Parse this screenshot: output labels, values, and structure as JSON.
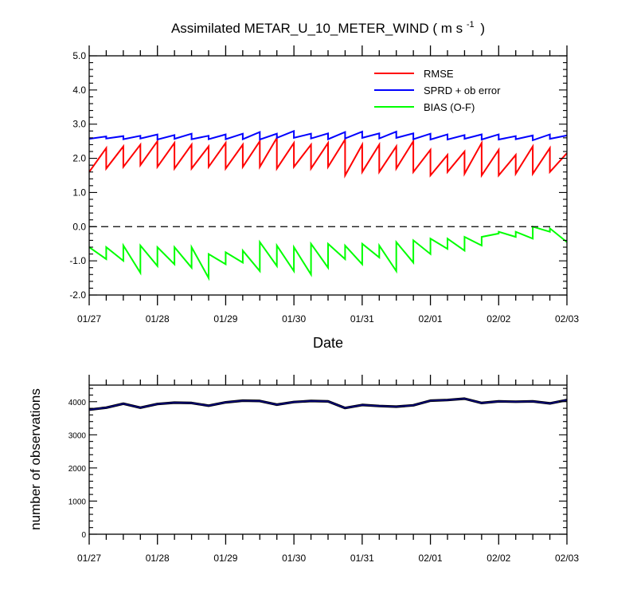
{
  "chart_data": [
    {
      "type": "line",
      "title": "Assimilated METAR_U_10_METER_WIND ( m s",
      "title_unit_exponent": "-1",
      "title_close": ")",
      "xlabel": "Date",
      "ylabel": "",
      "x_ticklabels": [
        "01/27",
        "01/28",
        "01/29",
        "01/30",
        "01/31",
        "02/01",
        "02/02",
        "02/03"
      ],
      "y_ticklabels": [
        "5.0",
        "4.0",
        "3.0",
        "2.0",
        "1.0",
        "0.0",
        "-1.0",
        "-2.0"
      ],
      "xlim": [
        "01/27",
        "02/03"
      ],
      "ylim": [
        -2,
        5
      ],
      "zero_line": "dashed",
      "legend_position": "top-right",
      "series": [
        {
          "name": "RMSE",
          "color": "#ff0000",
          "x_days": [
            0.0,
            0.25,
            0.25,
            0.5,
            0.5,
            0.75,
            0.75,
            1.0,
            1.0,
            1.25,
            1.25,
            1.5,
            1.5,
            1.75,
            1.75,
            2.0,
            2.0,
            2.25,
            2.25,
            2.5,
            2.5,
            2.75,
            2.75,
            3.0,
            3.0,
            3.25,
            3.25,
            3.5,
            3.5,
            3.75,
            3.75,
            4.0,
            4.0,
            4.25,
            4.25,
            4.5,
            4.5,
            4.75,
            4.75,
            5.0,
            5.0,
            5.25,
            5.25,
            5.5,
            5.5,
            5.75,
            5.75,
            6.0,
            6.0,
            6.25,
            6.25,
            6.5,
            6.5,
            6.75,
            6.75,
            7.0
          ],
          "values": [
            1.6,
            2.3,
            1.7,
            2.35,
            1.75,
            2.4,
            1.8,
            2.5,
            1.75,
            2.45,
            1.7,
            2.4,
            1.7,
            2.35,
            1.75,
            2.45,
            1.7,
            2.4,
            1.75,
            2.5,
            1.75,
            2.6,
            1.7,
            2.45,
            1.75,
            2.4,
            1.7,
            2.45,
            1.75,
            2.55,
            1.5,
            2.4,
            1.6,
            2.4,
            1.6,
            2.35,
            1.7,
            2.5,
            1.6,
            2.25,
            1.5,
            2.1,
            1.6,
            2.2,
            1.55,
            2.45,
            1.5,
            2.25,
            1.5,
            2.1,
            1.55,
            2.35,
            1.55,
            2.3,
            1.6,
            2.15
          ]
        },
        {
          "name": "SPRD + ob error",
          "color": "#0000ff",
          "x_days": [
            0.0,
            0.25,
            0.25,
            0.5,
            0.5,
            0.75,
            0.75,
            1.0,
            1.0,
            1.25,
            1.25,
            1.5,
            1.5,
            1.75,
            1.75,
            2.0,
            2.0,
            2.25,
            2.25,
            2.5,
            2.5,
            2.75,
            2.75,
            3.0,
            3.0,
            3.25,
            3.25,
            3.5,
            3.5,
            3.75,
            3.75,
            4.0,
            4.0,
            4.25,
            4.25,
            4.5,
            4.5,
            4.75,
            4.75,
            5.0,
            5.0,
            5.25,
            5.25,
            5.5,
            5.5,
            5.75,
            5.75,
            6.0,
            6.0,
            6.25,
            6.25,
            6.5,
            6.5,
            6.75,
            6.75,
            7.0
          ],
          "values": [
            2.57,
            2.64,
            2.58,
            2.65,
            2.56,
            2.66,
            2.58,
            2.7,
            2.55,
            2.68,
            2.57,
            2.72,
            2.56,
            2.66,
            2.56,
            2.7,
            2.56,
            2.72,
            2.56,
            2.77,
            2.55,
            2.72,
            2.6,
            2.8,
            2.6,
            2.72,
            2.58,
            2.73,
            2.56,
            2.77,
            2.58,
            2.78,
            2.6,
            2.73,
            2.58,
            2.78,
            2.6,
            2.73,
            2.56,
            2.72,
            2.55,
            2.7,
            2.55,
            2.68,
            2.57,
            2.7,
            2.55,
            2.7,
            2.55,
            2.65,
            2.56,
            2.67,
            2.53,
            2.7,
            2.57,
            2.67
          ]
        },
        {
          "name": "BIAS (O-F)",
          "color": "#00ff00",
          "x_days": [
            0.0,
            0.25,
            0.25,
            0.5,
            0.5,
            0.75,
            0.75,
            1.0,
            1.0,
            1.25,
            1.25,
            1.5,
            1.5,
            1.75,
            1.75,
            2.0,
            2.0,
            2.25,
            2.25,
            2.5,
            2.5,
            2.75,
            2.75,
            3.0,
            3.0,
            3.25,
            3.25,
            3.5,
            3.5,
            3.75,
            3.75,
            4.0,
            4.0,
            4.25,
            4.25,
            4.5,
            4.5,
            4.75,
            4.75,
            5.0,
            5.0,
            5.25,
            5.25,
            5.5,
            5.5,
            5.75,
            5.75,
            6.0,
            6.0,
            6.25,
            6.25,
            6.5,
            6.5,
            6.75,
            6.75,
            7.0
          ],
          "values": [
            -0.6,
            -0.95,
            -0.6,
            -1.0,
            -0.55,
            -1.35,
            -0.55,
            -1.15,
            -0.6,
            -1.1,
            -0.6,
            -1.2,
            -0.6,
            -1.5,
            -0.8,
            -1.1,
            -0.75,
            -1.05,
            -0.7,
            -1.3,
            -0.45,
            -1.15,
            -0.55,
            -1.3,
            -0.6,
            -1.4,
            -0.5,
            -1.2,
            -0.5,
            -0.95,
            -0.55,
            -1.1,
            -0.5,
            -0.9,
            -0.55,
            -1.3,
            -0.45,
            -1.05,
            -0.4,
            -0.8,
            -0.35,
            -0.65,
            -0.35,
            -0.7,
            -0.3,
            -0.55,
            -0.3,
            -0.2,
            -0.15,
            -0.3,
            -0.15,
            -0.35,
            0.0,
            -0.15,
            -0.05,
            -0.45
          ]
        }
      ]
    },
    {
      "type": "line",
      "title": "",
      "xlabel": "",
      "ylabel": "number of observations",
      "x_ticklabels": [
        "01/27",
        "01/28",
        "01/29",
        "01/30",
        "01/31",
        "02/01",
        "02/02",
        "02/03"
      ],
      "y_ticklabels": [
        "4000",
        "3000",
        "2000",
        "1000",
        "0"
      ],
      "xlim": [
        "01/27",
        "02/03"
      ],
      "ylim": [
        0,
        4500
      ],
      "series": [
        {
          "color": "#000080",
          "x_days": [
            0.0,
            0.25,
            0.5,
            0.75,
            1.0,
            1.25,
            1.5,
            1.75,
            2.0,
            2.25,
            2.5,
            2.75,
            3.0,
            3.25,
            3.5,
            3.75,
            4.0,
            4.25,
            4.5,
            4.75,
            5.0,
            5.25,
            5.5,
            5.75,
            6.0,
            6.25,
            6.5,
            6.75,
            7.0
          ],
          "values": [
            3760,
            3820,
            3940,
            3820,
            3930,
            3970,
            3960,
            3880,
            3980,
            4030,
            4020,
            3910,
            3990,
            4020,
            4010,
            3810,
            3900,
            3870,
            3850,
            3890,
            4030,
            4050,
            4090,
            3960,
            4010,
            4000,
            4010,
            3950,
            4050
          ]
        }
      ]
    }
  ]
}
